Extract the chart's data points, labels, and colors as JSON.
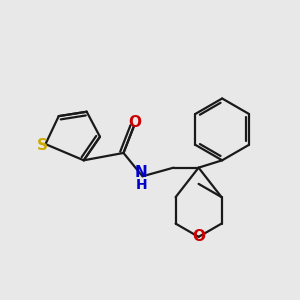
{
  "background_color": "#e8e8e8",
  "bond_color": "#1a1a1a",
  "S_color": "#ccaa00",
  "N_color": "#0000cc",
  "O_color": "#cc0000",
  "line_width": 1.6,
  "figsize": [
    3.0,
    3.0
  ],
  "dpi": 100,
  "xlim": [
    0,
    10
  ],
  "ylim": [
    0,
    10
  ]
}
